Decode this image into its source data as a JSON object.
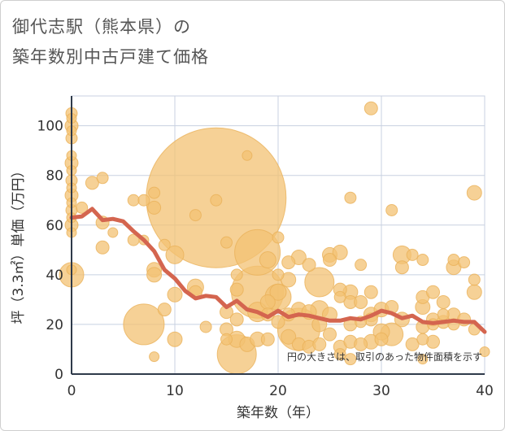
{
  "title": "御代志駅（熊本県）の\n築年数別中古戸建て価格",
  "chart_data": {
    "type": "scatter",
    "title": "御代志駅（熊本県）の\n築年数別中古戸建て価格",
    "xlabel": "築年数（年）",
    "ylabel": "坪（3.3㎡）単価（万円）",
    "xlim": [
      0,
      40
    ],
    "ylim": [
      0,
      112
    ],
    "xticks": [
      0,
      10,
      20,
      30,
      40
    ],
    "yticks": [
      0,
      20,
      40,
      60,
      80,
      100
    ],
    "x_tick_labels": [
      "0",
      "10",
      "20",
      "30",
      "40"
    ],
    "y_tick_labels": [
      "0",
      "20",
      "40",
      "60",
      "80",
      "100"
    ],
    "grid": true,
    "note": "円の大きさは、取引のあった物件面積を示す",
    "colors": {
      "bubble": "#f3c273",
      "bubble_edge": "#eab25a",
      "line": "#d4654f",
      "grid": "#c8d1e0",
      "axis": "#2f3a4a"
    },
    "scatter_series": {
      "points": [
        [
          0,
          105,
          7
        ],
        [
          0,
          103,
          6
        ],
        [
          0,
          100,
          8
        ],
        [
          0,
          98,
          6
        ],
        [
          0,
          95,
          7
        ],
        [
          0,
          88,
          6
        ],
        [
          0,
          85,
          8
        ],
        [
          0,
          82,
          6
        ],
        [
          0,
          78,
          7
        ],
        [
          0,
          75,
          6
        ],
        [
          0,
          72,
          8
        ],
        [
          0,
          69,
          6
        ],
        [
          0,
          66,
          7
        ],
        [
          0,
          63,
          6
        ],
        [
          0,
          60,
          8
        ],
        [
          0,
          57,
          6
        ],
        [
          0,
          40,
          15
        ],
        [
          0,
          42,
          6
        ],
        [
          1,
          67,
          7
        ],
        [
          2,
          77,
          8
        ],
        [
          3,
          79,
          7
        ],
        [
          3,
          61,
          8
        ],
        [
          3,
          51,
          8
        ],
        [
          4,
          57,
          6
        ],
        [
          6,
          70,
          7
        ],
        [
          6,
          54,
          7
        ],
        [
          7,
          70,
          7
        ],
        [
          7,
          54,
          6
        ],
        [
          7,
          20,
          25
        ],
        [
          8,
          73,
          7
        ],
        [
          8,
          67,
          8
        ],
        [
          8,
          42,
          9
        ],
        [
          8,
          40,
          9
        ],
        [
          8,
          7,
          6
        ],
        [
          9,
          52,
          7
        ],
        [
          9,
          26,
          8
        ],
        [
          10,
          48,
          11
        ],
        [
          10,
          32,
          9
        ],
        [
          10,
          14,
          9
        ],
        [
          12,
          64,
          7
        ],
        [
          12,
          35,
          10
        ],
        [
          12,
          33,
          8
        ],
        [
          13,
          19,
          7
        ],
        [
          14,
          71,
          86
        ],
        [
          14,
          70,
          7
        ],
        [
          15,
          53,
          7
        ],
        [
          15,
          25,
          8
        ],
        [
          15,
          18,
          8
        ],
        [
          15,
          14,
          7
        ],
        [
          16,
          40,
          7
        ],
        [
          16,
          34,
          8
        ],
        [
          16,
          22,
          8
        ],
        [
          16,
          14,
          10
        ],
        [
          16,
          8,
          24
        ],
        [
          17,
          88,
          6
        ],
        [
          17,
          12,
          9
        ],
        [
          18,
          49,
          28
        ],
        [
          18,
          33,
          32
        ],
        [
          18,
          14,
          9
        ],
        [
          18,
          25,
          12
        ],
        [
          19,
          46,
          10
        ],
        [
          19,
          29,
          9
        ],
        [
          19,
          24,
          8
        ],
        [
          19,
          14,
          8
        ],
        [
          20,
          55,
          7
        ],
        [
          20,
          40,
          7
        ],
        [
          20,
          31,
          16
        ],
        [
          20,
          33,
          10
        ],
        [
          20,
          21,
          8
        ],
        [
          21,
          45,
          8
        ],
        [
          21,
          38,
          9
        ],
        [
          21,
          24,
          8
        ],
        [
          21,
          15,
          9
        ],
        [
          22,
          47,
          9
        ],
        [
          22,
          26,
          9
        ],
        [
          22,
          18,
          26
        ],
        [
          22,
          12,
          8
        ],
        [
          23,
          44,
          8
        ],
        [
          23,
          25,
          9
        ],
        [
          23,
          11,
          8
        ],
        [
          24,
          37,
          18
        ],
        [
          24,
          26,
          11
        ],
        [
          24,
          20,
          9
        ],
        [
          24,
          12,
          8
        ],
        [
          25,
          48,
          9
        ],
        [
          25,
          46,
          8
        ],
        [
          25,
          24,
          9
        ],
        [
          25,
          16,
          8
        ],
        [
          26,
          49,
          9
        ],
        [
          26,
          34,
          8
        ],
        [
          26,
          31,
          7
        ],
        [
          26,
          11,
          8
        ],
        [
          26,
          8,
          7
        ],
        [
          27,
          71,
          7
        ],
        [
          27,
          33,
          9
        ],
        [
          27,
          29,
          8
        ],
        [
          27,
          20,
          8
        ],
        [
          27,
          13,
          8
        ],
        [
          27,
          6,
          7
        ],
        [
          28,
          44,
          7
        ],
        [
          28,
          29,
          8
        ],
        [
          28,
          21,
          7
        ],
        [
          28,
          12,
          8
        ],
        [
          29,
          107,
          8
        ],
        [
          29,
          33,
          8
        ],
        [
          29,
          24,
          9
        ],
        [
          29,
          22,
          8
        ],
        [
          29,
          13,
          9
        ],
        [
          30,
          26,
          9
        ],
        [
          30,
          17,
          10
        ],
        [
          30,
          14,
          8
        ],
        [
          31,
          66,
          7
        ],
        [
          31,
          27,
          8
        ],
        [
          31,
          16,
          14
        ],
        [
          32,
          48,
          11
        ],
        [
          32,
          43,
          8
        ],
        [
          32,
          22,
          9
        ],
        [
          33,
          48,
          7
        ],
        [
          33,
          12,
          8
        ],
        [
          34,
          46,
          7
        ],
        [
          34,
          31,
          8
        ],
        [
          34,
          27,
          9
        ],
        [
          34,
          19,
          8
        ],
        [
          34,
          14,
          7
        ],
        [
          34,
          6,
          6
        ],
        [
          35,
          33,
          8
        ],
        [
          35,
          22,
          8
        ],
        [
          35,
          20,
          7
        ],
        [
          35,
          13,
          8
        ],
        [
          36,
          29,
          8
        ],
        [
          36,
          24,
          7
        ],
        [
          36,
          21,
          8
        ],
        [
          37,
          46,
          7
        ],
        [
          37,
          43,
          9
        ],
        [
          37,
          24,
          8
        ],
        [
          37,
          20,
          7
        ],
        [
          38,
          45,
          7
        ],
        [
          38,
          22,
          8
        ],
        [
          39,
          73,
          9
        ],
        [
          39,
          38,
          7
        ],
        [
          39,
          33,
          9
        ],
        [
          39,
          18,
          7
        ],
        [
          40,
          9,
          6
        ]
      ]
    },
    "line_series": {
      "name": "",
      "x": [
        0,
        1,
        2,
        3,
        4,
        5,
        6,
        7,
        8,
        9,
        10,
        11,
        12,
        13,
        14,
        15,
        16,
        17,
        18,
        19,
        20,
        21,
        22,
        23,
        24,
        25,
        26,
        27,
        28,
        29,
        30,
        31,
        32,
        33,
        34,
        35,
        36,
        37,
        38,
        39,
        40
      ],
      "y": [
        63,
        63.5,
        66.5,
        62,
        62.5,
        61.5,
        57.5,
        54,
        49.5,
        42,
        38.5,
        33.5,
        30.5,
        31.5,
        31,
        27,
        29.5,
        26,
        25,
        23,
        25.5,
        23,
        24,
        23.5,
        22.5,
        21.5,
        21.5,
        22.5,
        22,
        23.5,
        25.5,
        24.5,
        22.5,
        23.5,
        21,
        20.5,
        21,
        21.5,
        21,
        21,
        17
      ]
    }
  }
}
